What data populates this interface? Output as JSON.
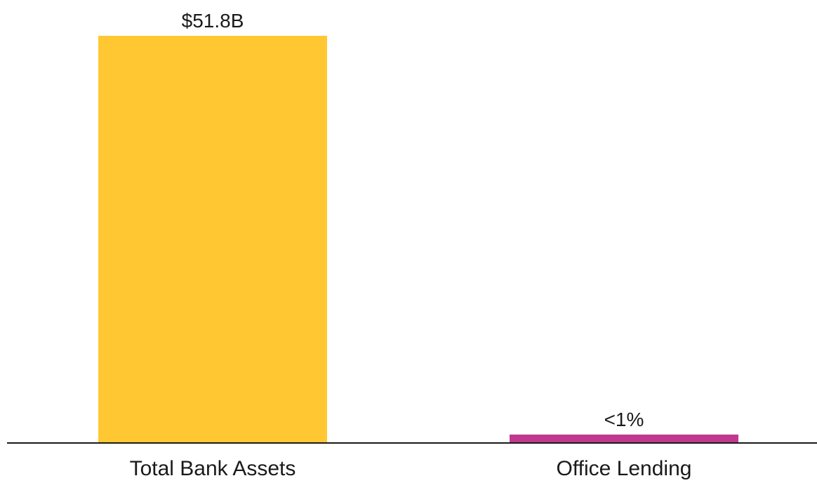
{
  "chart_data": {
    "type": "bar",
    "categories": [
      "Total Bank Assets",
      "Office Lending"
    ],
    "values": [
      51.8,
      0.5
    ],
    "value_labels": [
      "$51.8B",
      "<1%"
    ],
    "colors": [
      "#FFC832",
      "#C0398F"
    ],
    "title": "",
    "xlabel": "",
    "ylabel": "",
    "ylim": [
      0,
      51.8
    ],
    "grid": false,
    "legend": "none"
  }
}
